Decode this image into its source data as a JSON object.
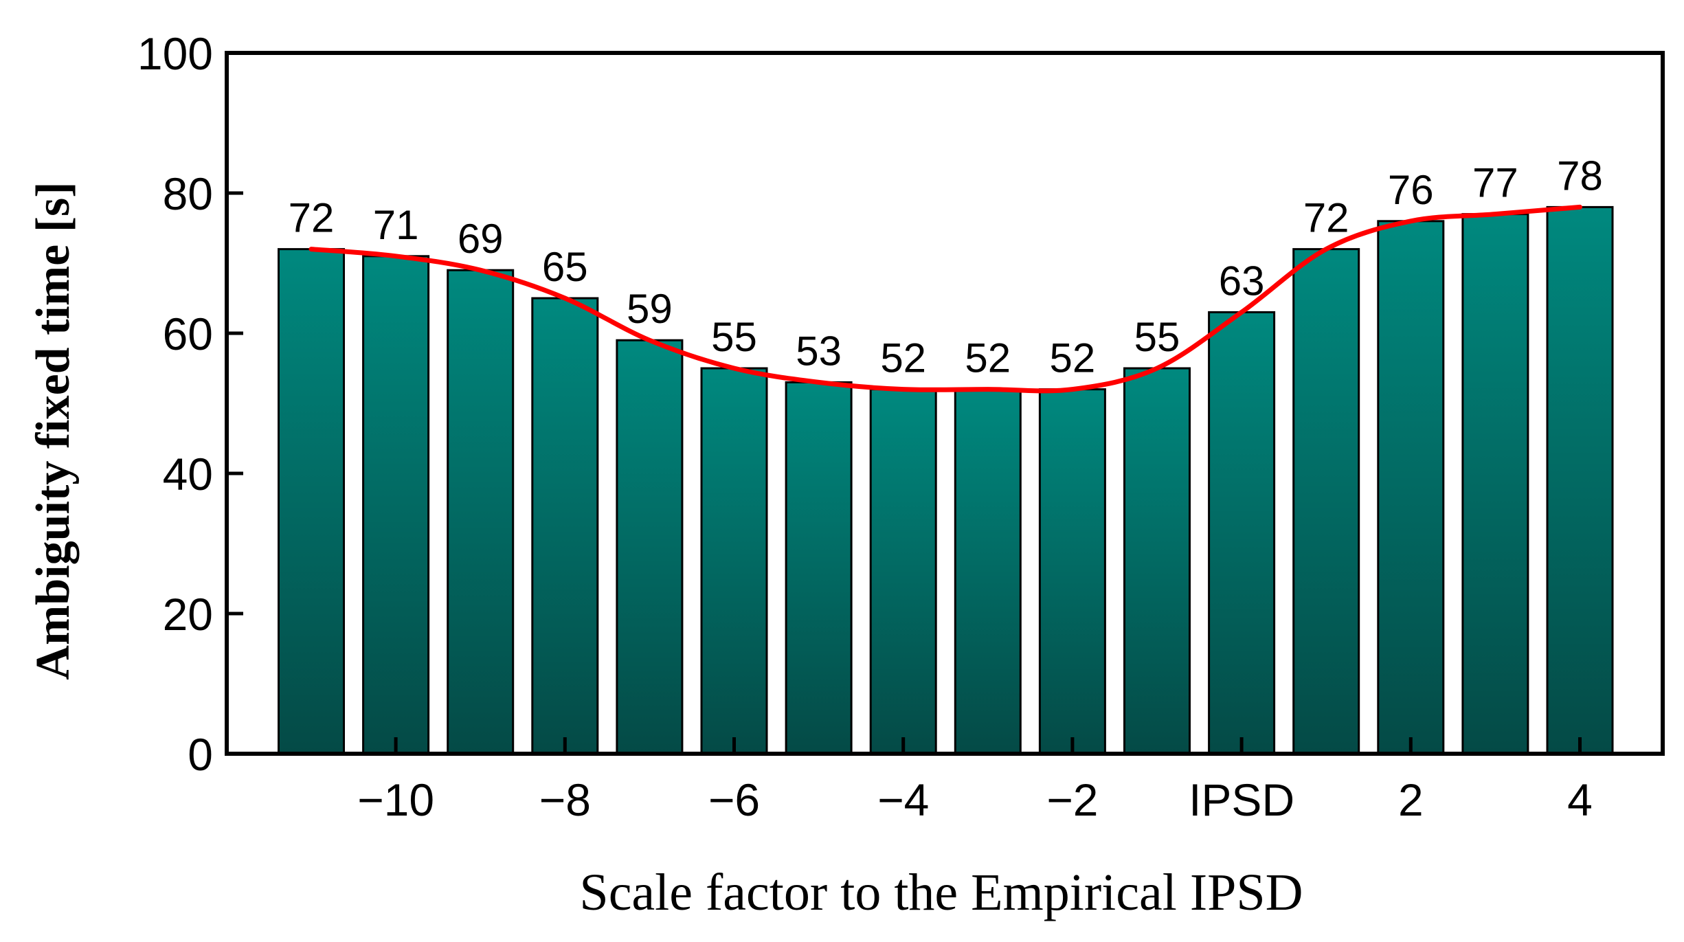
{
  "chart_data": {
    "type": "bar",
    "title": "",
    "xlabel": "Scale factor to the Empirical IPSD",
    "ylabel": "Ambiguity fixed time [s]",
    "ylim": [
      0,
      100
    ],
    "y_ticks": [
      0,
      20,
      40,
      60,
      80,
      100
    ],
    "x_tick_labels": [
      {
        "index": 1,
        "label": "−10"
      },
      {
        "index": 3,
        "label": "−8"
      },
      {
        "index": 5,
        "label": "−6"
      },
      {
        "index": 7,
        "label": "−4"
      },
      {
        "index": 9,
        "label": "−2"
      },
      {
        "index": 11,
        "label": "IPSD"
      },
      {
        "index": 13,
        "label": "2"
      },
      {
        "index": 15,
        "label": "4"
      }
    ],
    "values": [
      72,
      71,
      69,
      65,
      59,
      55,
      53,
      52,
      52,
      52,
      55,
      63,
      72,
      76,
      77,
      78
    ],
    "trend_line": true,
    "colors": {
      "bar_top": "#00897f",
      "bar_bottom": "#044a46",
      "trend": "#ff0000"
    }
  }
}
